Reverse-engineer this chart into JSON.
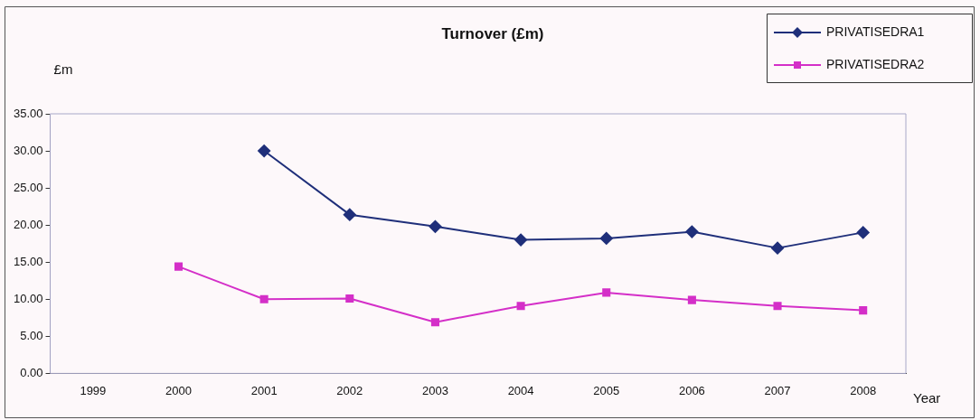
{
  "chart_data": {
    "type": "line",
    "title": "Turnover (£m)",
    "ylabel": "£m",
    "xlabel": "Year",
    "categories": [
      "1999",
      "2000",
      "2001",
      "2002",
      "2003",
      "2004",
      "2005",
      "2006",
      "2007",
      "2008"
    ],
    "series": [
      {
        "name": "PRIVATISEDRA1",
        "color": "#1f2f7a",
        "marker": "diamond",
        "values": [
          null,
          null,
          30.0,
          21.4,
          19.8,
          18.0,
          18.2,
          19.1,
          16.9,
          19.0
        ]
      },
      {
        "name": "PRIVATISEDRA2",
        "color": "#d42fc8",
        "marker": "square",
        "values": [
          null,
          14.4,
          10.0,
          10.1,
          6.9,
          9.1,
          10.9,
          9.9,
          9.1,
          8.5
        ]
      }
    ],
    "ylim": [
      0,
      35
    ],
    "yticks": [
      {
        "value": 0,
        "label": "0.00"
      },
      {
        "value": 5,
        "label": "5.00"
      },
      {
        "value": 10,
        "label": "10.00"
      },
      {
        "value": 15,
        "label": "15.00"
      },
      {
        "value": 20,
        "label": "20.00"
      },
      {
        "value": 25,
        "label": "25.00"
      },
      {
        "value": 30,
        "label": "30.00"
      },
      {
        "value": 35,
        "label": "35.00"
      }
    ],
    "grid": false,
    "legend": "top right"
  }
}
